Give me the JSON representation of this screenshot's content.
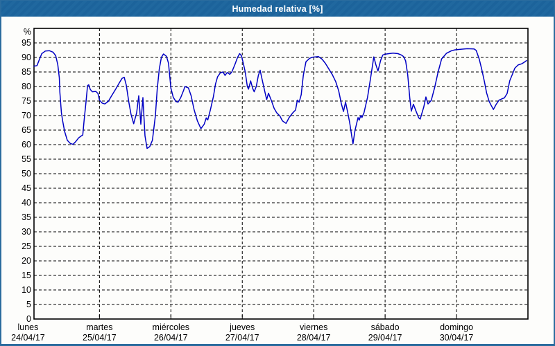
{
  "window": {
    "title": "Humedad relativa [%]",
    "title_bar_color": "#1c639b",
    "border_color": "#2b6c9e",
    "background": "#fdfdfb"
  },
  "chart_data": {
    "type": "line",
    "title": "Humedad relativa [%]",
    "xlabel": "",
    "ylabel": "%",
    "ylim": [
      0,
      100
    ],
    "yticks": [
      0,
      5,
      10,
      15,
      20,
      25,
      30,
      35,
      40,
      45,
      50,
      55,
      60,
      65,
      70,
      75,
      80,
      85,
      90,
      95
    ],
    "grid": true,
    "grid_style": "dashed",
    "line_color": "#0000c4",
    "x_unit": "hours since lunes 24/04/17 00:00",
    "x_visible_range": [
      2,
      168
    ],
    "day_boundary_hours": [
      24,
      48,
      72,
      96,
      120,
      144
    ],
    "days": [
      {
        "name": "lunes",
        "date": "24/04/17",
        "start_hour": 0
      },
      {
        "name": "martes",
        "date": "25/04/17",
        "start_hour": 24
      },
      {
        "name": "miércoles",
        "date": "26/04/17",
        "start_hour": 48
      },
      {
        "name": "jueves",
        "date": "27/04/17",
        "start_hour": 72
      },
      {
        "name": "viernes",
        "date": "28/04/17",
        "start_hour": 96
      },
      {
        "name": "sábado",
        "date": "29/04/17",
        "start_hour": 120
      },
      {
        "name": "domingo",
        "date": "30/04/17",
        "start_hour": 144
      }
    ],
    "series": [
      {
        "name": "Humedad relativa",
        "points": [
          [
            2.0,
            87
          ],
          [
            3.0,
            87.2
          ],
          [
            3.7,
            89
          ],
          [
            4.6,
            91.3
          ],
          [
            5.8,
            92.2
          ],
          [
            7.2,
            92.3
          ],
          [
            8.4,
            91.8
          ],
          [
            9.3,
            90.6
          ],
          [
            10.0,
            87.5
          ],
          [
            10.5,
            83
          ],
          [
            10.7,
            78
          ],
          [
            11.2,
            71
          ],
          [
            11.6,
            68.3
          ],
          [
            12.3,
            64.5
          ],
          [
            13.2,
            61.5
          ],
          [
            14.2,
            60.4
          ],
          [
            15.1,
            60.1
          ],
          [
            16.0,
            61
          ],
          [
            17.0,
            62.3
          ],
          [
            17.9,
            63
          ],
          [
            18.4,
            63.3
          ],
          [
            18.8,
            68
          ],
          [
            19.5,
            75
          ],
          [
            20.0,
            80.3
          ],
          [
            20.4,
            80.6
          ],
          [
            20.9,
            79
          ],
          [
            21.6,
            78.2
          ],
          [
            22.8,
            78.3
          ],
          [
            23.5,
            77.6
          ],
          [
            24.0,
            75.3
          ],
          [
            24.9,
            74.3
          ],
          [
            25.8,
            74.0
          ],
          [
            27.0,
            74.9
          ],
          [
            28.1,
            76.8
          ],
          [
            29.5,
            79.2
          ],
          [
            30.7,
            81.3
          ],
          [
            31.6,
            82.8
          ],
          [
            32.3,
            83.2
          ],
          [
            33.0,
            80.5
          ],
          [
            33.9,
            74.5
          ],
          [
            34.6,
            70.5
          ],
          [
            35.5,
            67.2
          ],
          [
            36.5,
            71
          ],
          [
            37.2,
            76.8
          ],
          [
            37.9,
            67
          ],
          [
            38.6,
            76.2
          ],
          [
            39.3,
            63
          ],
          [
            40.0,
            58.7
          ],
          [
            40.9,
            59.3
          ],
          [
            41.8,
            61.5
          ],
          [
            42.8,
            70
          ],
          [
            43.4,
            79
          ],
          [
            44.1,
            86
          ],
          [
            44.8,
            90
          ],
          [
            45.5,
            91.2
          ],
          [
            46.5,
            90.4
          ],
          [
            47.2,
            88
          ],
          [
            48.0,
            79.5
          ],
          [
            48.8,
            76.3
          ],
          [
            49.7,
            74.8
          ],
          [
            50.4,
            74.6
          ],
          [
            51.3,
            76.2
          ],
          [
            52.3,
            78.7
          ],
          [
            52.7,
            80
          ],
          [
            53.9,
            79.5
          ],
          [
            54.8,
            76.8
          ],
          [
            55.8,
            72
          ],
          [
            56.9,
            68.2
          ],
          [
            58.1,
            65.5
          ],
          [
            59.2,
            67
          ],
          [
            59.9,
            69.2
          ],
          [
            60.4,
            68.5
          ],
          [
            61.3,
            72
          ],
          [
            62.3,
            76.5
          ],
          [
            63.0,
            80.8
          ],
          [
            63.7,
            83.3
          ],
          [
            64.6,
            84.7
          ],
          [
            65.5,
            85
          ],
          [
            66.2,
            83.8
          ],
          [
            66.9,
            84.8
          ],
          [
            67.8,
            84.2
          ],
          [
            68.5,
            85
          ],
          [
            69.5,
            87.5
          ],
          [
            70.4,
            90
          ],
          [
            71.1,
            91.3
          ],
          [
            71.7,
            90.6
          ],
          [
            72.3,
            88.2
          ],
          [
            73.0,
            85
          ],
          [
            73.7,
            80
          ],
          [
            74.1,
            79.1
          ],
          [
            74.8,
            81.9
          ],
          [
            75.5,
            79.3
          ],
          [
            76.0,
            78.2
          ],
          [
            76.7,
            80
          ],
          [
            77.4,
            83.8
          ],
          [
            78.0,
            85.6
          ],
          [
            78.5,
            83.2
          ],
          [
            79.5,
            78.6
          ],
          [
            80.2,
            75.5
          ],
          [
            80.8,
            77.7
          ],
          [
            81.8,
            75.1
          ],
          [
            82.7,
            72.5
          ],
          [
            83.6,
            70.9
          ],
          [
            84.6,
            69.9
          ],
          [
            85.5,
            68.2
          ],
          [
            86.7,
            67.3
          ],
          [
            87.8,
            69.4
          ],
          [
            89.0,
            71
          ],
          [
            89.9,
            71.9
          ],
          [
            90.5,
            75.3
          ],
          [
            91.1,
            74.6
          ],
          [
            91.8,
            77.2
          ],
          [
            92.5,
            83.8
          ],
          [
            93.4,
            88.5
          ],
          [
            94.6,
            89.7
          ],
          [
            95.7,
            90.1
          ],
          [
            97.6,
            90.3
          ],
          [
            98.8,
            89.4
          ],
          [
            99.9,
            88
          ],
          [
            101.1,
            86
          ],
          [
            102.3,
            84
          ],
          [
            103.4,
            81.7
          ],
          [
            104.4,
            78.5
          ],
          [
            105.3,
            74
          ],
          [
            106.0,
            71.4
          ],
          [
            106.7,
            74.6
          ],
          [
            107.4,
            71.2
          ],
          [
            108.1,
            67.5
          ],
          [
            108.8,
            62.8
          ],
          [
            109.2,
            60.3
          ],
          [
            109.9,
            65
          ],
          [
            110.9,
            69.3
          ],
          [
            111.3,
            68.4
          ],
          [
            111.8,
            70
          ],
          [
            112.2,
            69.3
          ],
          [
            112.9,
            71
          ],
          [
            114.1,
            76.3
          ],
          [
            115.2,
            83.4
          ],
          [
            116.2,
            90.2
          ],
          [
            116.9,
            87.5
          ],
          [
            117.6,
            85.3
          ],
          [
            118.5,
            89
          ],
          [
            119.2,
            90.8
          ],
          [
            119.9,
            91.1
          ],
          [
            121.3,
            91.3
          ],
          [
            122.7,
            91.5
          ],
          [
            124.3,
            91.3
          ],
          [
            125.5,
            90.8
          ],
          [
            126.2,
            90.3
          ],
          [
            126.9,
            88.8
          ],
          [
            127.6,
            84
          ],
          [
            128.3,
            76
          ],
          [
            128.8,
            71.5
          ],
          [
            129.5,
            73.9
          ],
          [
            130.4,
            71.5
          ],
          [
            131.3,
            69.2
          ],
          [
            131.8,
            68.8
          ],
          [
            133.0,
            73
          ],
          [
            133.7,
            76.4
          ],
          [
            134.4,
            74
          ],
          [
            135.5,
            75.2
          ],
          [
            136.7,
            79.8
          ],
          [
            137.8,
            85
          ],
          [
            139.0,
            89.5
          ],
          [
            140.6,
            91.4
          ],
          [
            142.3,
            92.3
          ],
          [
            143.4,
            92.6
          ],
          [
            145.3,
            92.8
          ],
          [
            147.6,
            93
          ],
          [
            149.9,
            92.9
          ],
          [
            150.6,
            92.4
          ],
          [
            151.6,
            89.5
          ],
          [
            152.5,
            85.8
          ],
          [
            153.4,
            81.5
          ],
          [
            154.1,
            77.8
          ],
          [
            155.0,
            74.8
          ],
          [
            155.7,
            73.4
          ],
          [
            156.4,
            72.1
          ],
          [
            157.3,
            73.8
          ],
          [
            158.3,
            75.3
          ],
          [
            159.4,
            75.8
          ],
          [
            160.1,
            76.1
          ],
          [
            161.0,
            77.6
          ],
          [
            161.9,
            82
          ],
          [
            162.9,
            84.5
          ],
          [
            163.6,
            86.3
          ],
          [
            164.7,
            87.4
          ],
          [
            165.9,
            87.8
          ],
          [
            166.8,
            88.4
          ],
          [
            167.5,
            88.9
          ]
        ]
      }
    ]
  }
}
